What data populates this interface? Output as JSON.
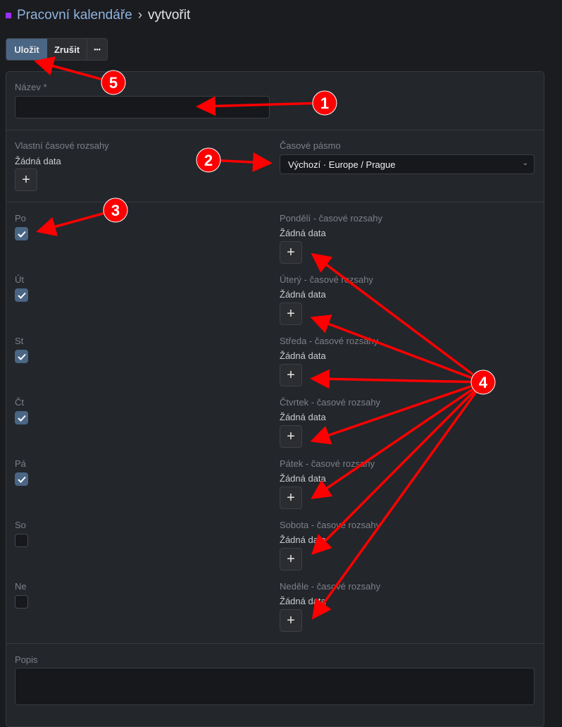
{
  "header": {
    "breadcrumb_parent": "Pracovní kalendáře",
    "separator": "›",
    "current": "vytvořit"
  },
  "toolbar": {
    "save_label": "Uložit",
    "cancel_label": "Zrušit",
    "more_label": "•••"
  },
  "form": {
    "name_label": "Název *",
    "name_value": "",
    "custom_ranges_label": "Vlastní časové rozsahy",
    "custom_ranges_empty": "Žádná data",
    "timezone_label": "Časové pásmo",
    "timezone_value": "Výchozí · Europe / Prague",
    "days": [
      {
        "short": "Po",
        "ranges_label": "Pondělí - časové rozsahy",
        "empty": "Žádná data",
        "checked": true
      },
      {
        "short": "Út",
        "ranges_label": "Úterý - časové rozsahy",
        "empty": "Žádná data",
        "checked": true
      },
      {
        "short": "St",
        "ranges_label": "Středa - časové rozsahy",
        "empty": "Žádná data",
        "checked": true
      },
      {
        "short": "Čt",
        "ranges_label": "Čtvrtek - časové rozsahy",
        "empty": "Žádná data",
        "checked": true
      },
      {
        "short": "Pá",
        "ranges_label": "Pátek - časové rozsahy",
        "empty": "Žádná data",
        "checked": true
      },
      {
        "short": "So",
        "ranges_label": "Sobota - časové rozsahy",
        "empty": "Žádná data",
        "checked": false
      },
      {
        "short": "Ne",
        "ranges_label": "Neděle - časové rozsahy",
        "empty": "Žádná data",
        "checked": false
      }
    ],
    "description_label": "Popis",
    "description_value": ""
  },
  "annotations": {
    "color": "#ff0000",
    "labels": [
      "1",
      "2",
      "3",
      "4",
      "5"
    ]
  },
  "icons": {
    "add": "plus-icon",
    "check": "check-icon",
    "chevron": "chevron-down-icon",
    "more": "ellipsis-icon"
  }
}
